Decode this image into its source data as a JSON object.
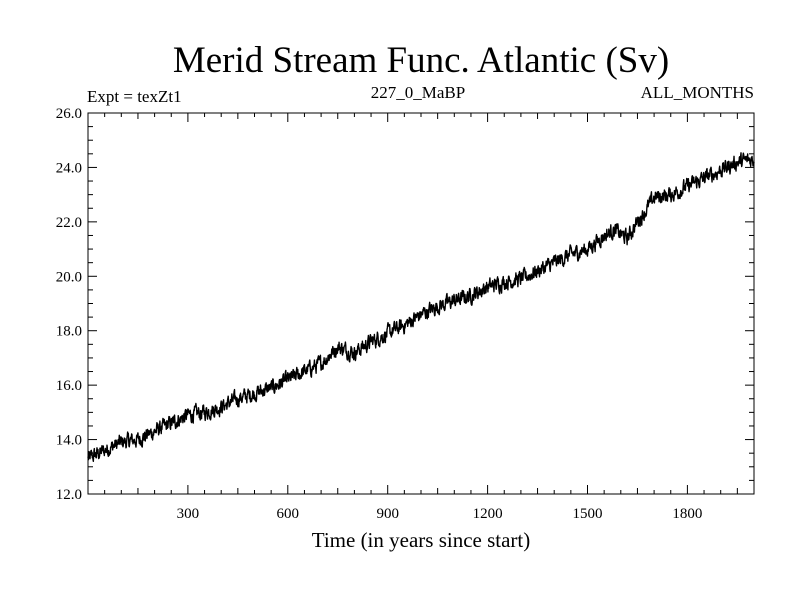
{
  "chart_data": {
    "type": "line",
    "title": "Merid Stream Func. Atlantic (Sv)",
    "subtitle_left": "Expt = texZt1",
    "subtitle_center": "227_0_MaBP",
    "subtitle_right": "ALL_MONTHS",
    "xlabel": "Time (in years since start)",
    "ylabel": "",
    "xlim": [
      0,
      2000
    ],
    "ylim": [
      12.0,
      26.0
    ],
    "x_ticks": [
      300,
      600,
      900,
      1200,
      1500,
      1800
    ],
    "x_tick_labels": [
      "300",
      "600",
      "900",
      "1200",
      "1500",
      "1800"
    ],
    "y_ticks": [
      12,
      14,
      16,
      18,
      20,
      22,
      24,
      26
    ],
    "y_tick_labels": [
      "12.0",
      "14.0",
      "16.0",
      "18.0",
      "20.0",
      "22.0",
      "24.0",
      "26.0"
    ],
    "grid": false,
    "series": [
      {
        "name": "Merid Stream Func. Atlantic",
        "x": [
          0,
          50,
          100,
          150,
          200,
          250,
          300,
          350,
          400,
          450,
          500,
          550,
          600,
          650,
          700,
          750,
          800,
          850,
          900,
          950,
          1000,
          1050,
          1100,
          1150,
          1200,
          1250,
          1300,
          1350,
          1400,
          1450,
          1500,
          1550,
          1580,
          1620,
          1650,
          1680,
          1700,
          1750,
          1800,
          1850,
          1900,
          1950,
          2000
        ],
        "values": [
          13.3,
          13.6,
          13.9,
          14.0,
          14.3,
          14.6,
          14.9,
          15.0,
          15.2,
          15.5,
          15.7,
          15.9,
          16.2,
          16.5,
          16.8,
          17.4,
          17.2,
          17.6,
          17.9,
          18.2,
          18.6,
          18.9,
          19.1,
          19.3,
          19.6,
          19.8,
          19.9,
          20.2,
          20.5,
          20.8,
          21.0,
          21.5,
          21.7,
          21.4,
          22.0,
          22.5,
          22.9,
          23.0,
          23.3,
          23.6,
          23.9,
          24.2,
          24.3
        ]
      }
    ]
  }
}
